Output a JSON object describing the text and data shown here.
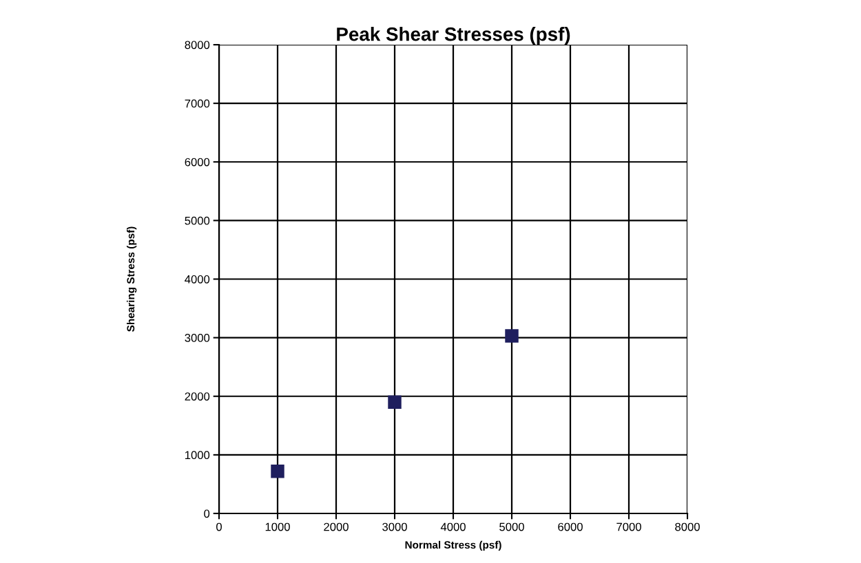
{
  "chart_data": {
    "type": "scatter",
    "title": "Peak Shear Stresses (psf)",
    "xlabel": "Normal Stress (psf)",
    "ylabel": "Shearing Stress (psf)",
    "x": [
      1000,
      3000,
      5000
    ],
    "values": [
      720,
      1900,
      3030
    ],
    "color": "#1f1f5e",
    "marker": "square",
    "xlim": [
      0,
      8000
    ],
    "xticks": [
      0,
      1000,
      2000,
      3000,
      4000,
      5000,
      6000,
      7000,
      8000
    ],
    "ylim": [
      0,
      8000
    ],
    "yticks": [
      0,
      1000,
      2000,
      3000,
      4000,
      5000,
      6000,
      7000,
      8000
    ],
    "grid": true
  }
}
